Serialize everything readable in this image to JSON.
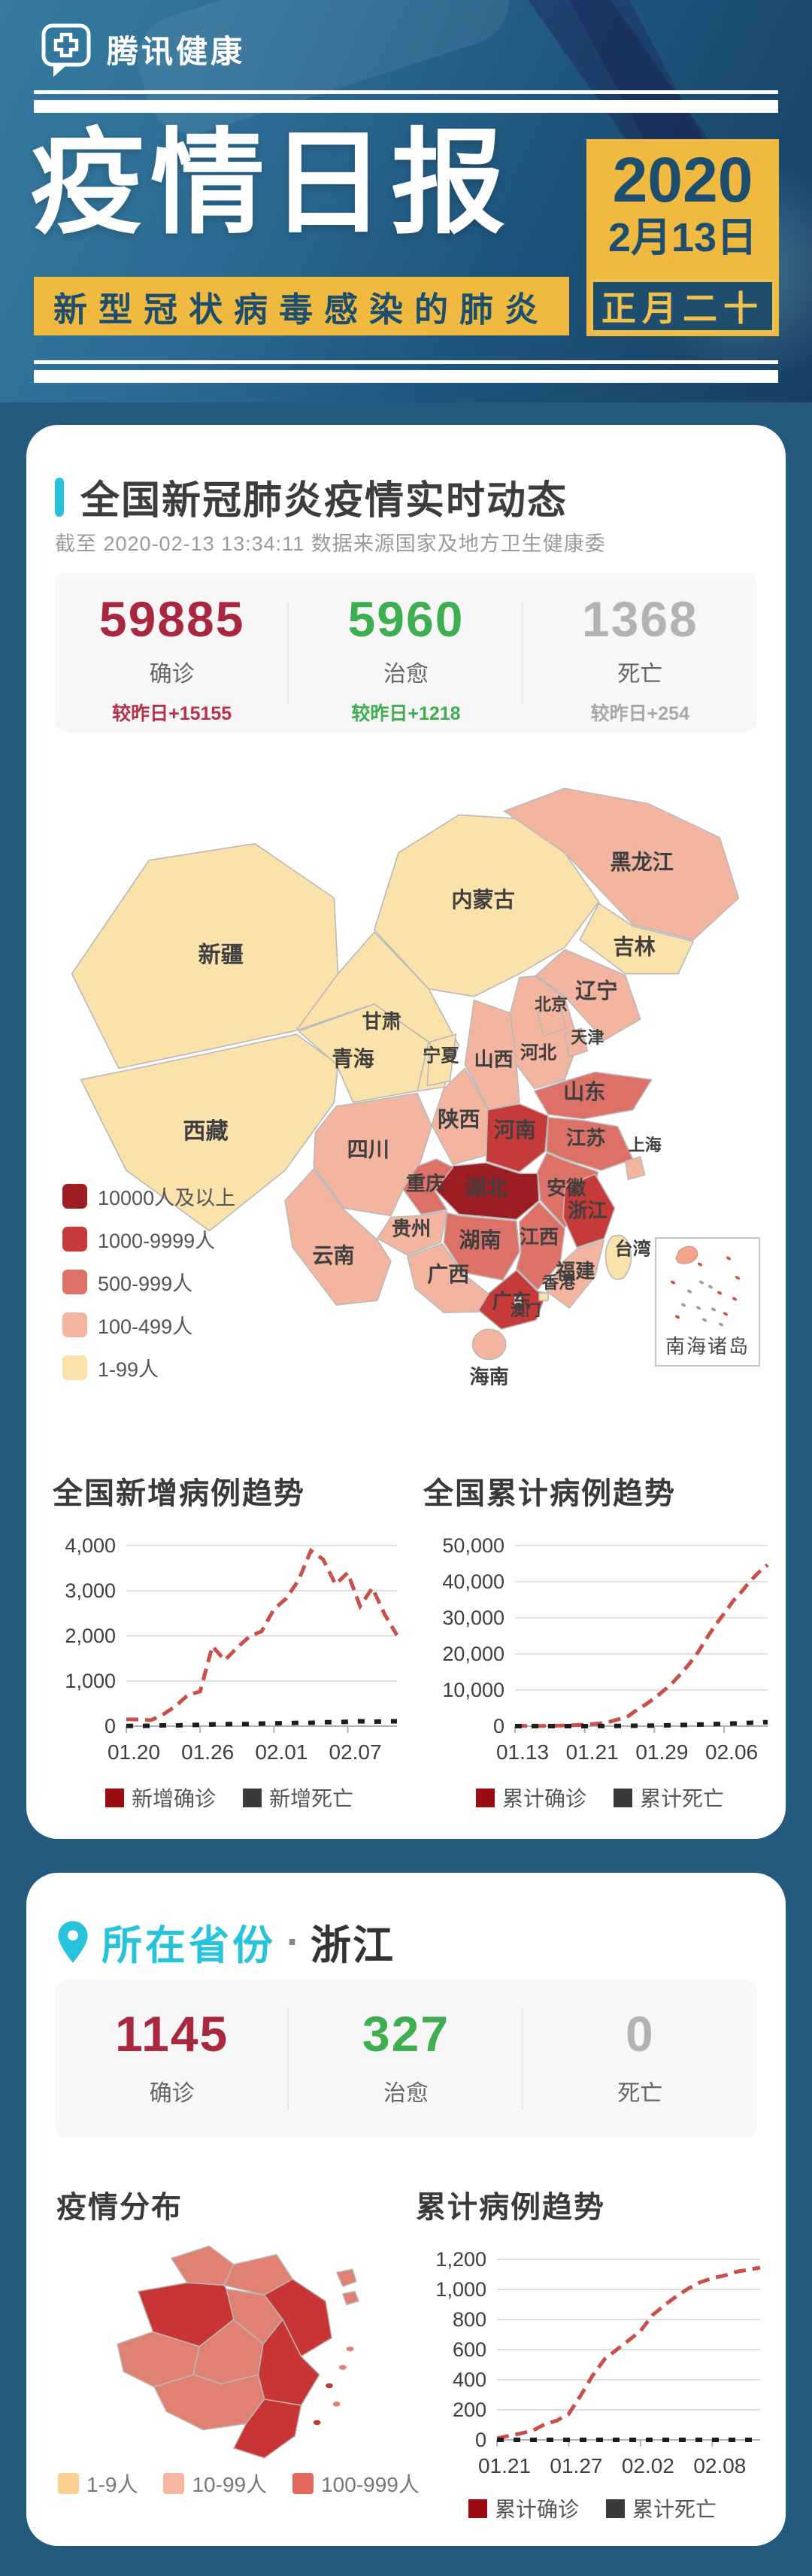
{
  "header": {
    "brand": "腾讯健康",
    "title": "疫情日报",
    "date_year": "2020",
    "date_md": "2月13日",
    "lunar": "正月二十",
    "subtitle": "新型冠状病毒感染的肺炎",
    "colors": {
      "yellow": "#efba3f",
      "navy": "#1d4e6e",
      "page_bg": "#245a7e"
    }
  },
  "national": {
    "section_title": "全国新冠肺炎疫情实时动态",
    "source_note": "截至 2020-02-13 13:34:11 数据来源国家及地方卫生健康委",
    "stats": [
      {
        "value": "59885",
        "label": "确诊",
        "delta": "较昨日+15155",
        "color": "#a8293f",
        "delta_color": "#b8304a"
      },
      {
        "value": "5960",
        "label": "治愈",
        "delta": "较昨日+1218",
        "color": "#3fae50",
        "delta_color": "#3fae50"
      },
      {
        "value": "1368",
        "label": "死亡",
        "delta": "较昨日+254",
        "color": "#b3b3b3",
        "delta_color": "#a9a9a9"
      }
    ],
    "map": {
      "legend": [
        {
          "label": "10000人及以上",
          "color": "#9c1d22"
        },
        {
          "label": "1000-9999人",
          "color": "#c73a3a"
        },
        {
          "label": "500-999人",
          "color": "#dd7168"
        },
        {
          "label": "100-499人",
          "color": "#f4b5a0"
        },
        {
          "label": "1-99人",
          "color": "#fbe2ab"
        }
      ],
      "inset_label": "南海诸岛",
      "provinces": [
        {
          "name": "新疆",
          "level": 1
        },
        {
          "name": "西藏",
          "level": 1
        },
        {
          "name": "青海",
          "level": 1
        },
        {
          "name": "甘肃",
          "level": 1
        },
        {
          "name": "内蒙古",
          "level": 1
        },
        {
          "name": "宁夏",
          "level": 1
        },
        {
          "name": "黑龙江",
          "level": 2
        },
        {
          "name": "吉林",
          "level": 1
        },
        {
          "name": "辽宁",
          "level": 2
        },
        {
          "name": "河北",
          "level": 2
        },
        {
          "name": "山西",
          "level": 2
        },
        {
          "name": "陕西",
          "level": 2
        },
        {
          "name": "山东",
          "level": 3
        },
        {
          "name": "河南",
          "level": 4
        },
        {
          "name": "江苏",
          "level": 3
        },
        {
          "name": "安徽",
          "level": 3
        },
        {
          "name": "湖北",
          "level": 5
        },
        {
          "name": "重庆",
          "level": 3
        },
        {
          "name": "四川",
          "level": 2
        },
        {
          "name": "贵州",
          "level": 2
        },
        {
          "name": "云南",
          "level": 2
        },
        {
          "name": "湖南",
          "level": 3
        },
        {
          "name": "江西",
          "level": 3
        },
        {
          "name": "浙江",
          "level": 4
        },
        {
          "name": "福建",
          "level": 2
        },
        {
          "name": "广西",
          "level": 2
        },
        {
          "name": "广东",
          "level": 4
        },
        {
          "name": "海南",
          "level": 2
        },
        {
          "name": "台湾",
          "level": 1
        },
        {
          "name": "北京",
          "level": 2
        },
        {
          "name": "天津",
          "level": 2
        },
        {
          "name": "上海",
          "level": 2
        },
        {
          "name": "香港",
          "level": 1
        },
        {
          "name": "澳门",
          "level": 1
        }
      ]
    }
  },
  "chart_data": [
    {
      "type": "line",
      "title": "全国新增病例趋势",
      "x": [
        "01.20",
        "01.21",
        "01.22",
        "01.23",
        "01.24",
        "01.25",
        "01.26",
        "01.27",
        "01.28",
        "01.29",
        "01.30",
        "01.31",
        "02.01",
        "02.02",
        "02.03",
        "02.04",
        "02.05",
        "02.06",
        "02.07",
        "02.08",
        "02.09",
        "02.10",
        "02.11"
      ],
      "xticks": [
        {
          "i": 0,
          "label": "01.20"
        },
        {
          "i": 6,
          "label": "01.26"
        },
        {
          "i": 12,
          "label": "02.01"
        },
        {
          "i": 18,
          "label": "02.07"
        }
      ],
      "yticks": [
        {
          "v": 0,
          "label": "0"
        },
        {
          "v": 1000,
          "label": "1,000"
        },
        {
          "v": 2000,
          "label": "2,000"
        },
        {
          "v": 3000,
          "label": "3,000"
        },
        {
          "v": 4000,
          "label": "4,000"
        }
      ],
      "ylim": [
        0,
        4000
      ],
      "grid": true,
      "legend_position": "bottom",
      "series": [
        {
          "name": "新增确诊",
          "role": "confirmed",
          "color": "#c9504a",
          "legend_color": "#9c0b10",
          "values": [
            150,
            149,
            131,
            259,
            444,
            688,
            769,
            1771,
            1459,
            1737,
            1982,
            2102,
            2590,
            2829,
            3235,
            3887,
            3694,
            3143,
            3399,
            2656,
            3062,
            2478,
            2015
          ]
        },
        {
          "name": "新增死亡",
          "role": "death",
          "color": "#1d1d1d",
          "legend_color": "#3a3a3a",
          "values": [
            3,
            4,
            8,
            16,
            15,
            24,
            26,
            38,
            43,
            46,
            45,
            57,
            64,
            65,
            73,
            73,
            86,
            89,
            97,
            108,
            97,
            103,
            108
          ]
        }
      ]
    },
    {
      "type": "line",
      "title": "全国累计病例趋势",
      "x": [
        "01.13",
        "01.14",
        "01.15",
        "01.16",
        "01.17",
        "01.18",
        "01.19",
        "01.20",
        "01.21",
        "01.22",
        "01.23",
        "01.24",
        "01.25",
        "01.26",
        "01.27",
        "01.28",
        "01.29",
        "01.30",
        "01.31",
        "02.01",
        "02.02",
        "02.03",
        "02.04",
        "02.05",
        "02.06",
        "02.07",
        "02.08",
        "02.09",
        "02.10",
        "02.11"
      ],
      "xticks": [
        {
          "i": 0,
          "label": "01.13"
        },
        {
          "i": 8,
          "label": "01.21"
        },
        {
          "i": 16,
          "label": "01.29"
        },
        {
          "i": 24,
          "label": "02.06"
        }
      ],
      "yticks": [
        {
          "v": 0,
          "label": "0"
        },
        {
          "v": 10000,
          "label": "10,000"
        },
        {
          "v": 20000,
          "label": "20,000"
        },
        {
          "v": 30000,
          "label": "30,000"
        },
        {
          "v": 40000,
          "label": "40,000"
        },
        {
          "v": 50000,
          "label": "50,000"
        }
      ],
      "ylim": [
        0,
        50000
      ],
      "grid": true,
      "legend_position": "bottom",
      "series": [
        {
          "name": "累计确诊",
          "role": "confirmed",
          "color": "#c9504a",
          "legend_color": "#9c0b10",
          "values": [
            41,
            41,
            41,
            45,
            62,
            121,
            198,
            291,
            440,
            571,
            830,
            1287,
            1975,
            2744,
            4515,
            5974,
            7711,
            9692,
            11791,
            14380,
            17205,
            20438,
            24324,
            28018,
            31161,
            34546,
            37198,
            40171,
            42638,
            44653
          ]
        },
        {
          "name": "累计死亡",
          "role": "death",
          "color": "#1d1d1d",
          "legend_color": "#3a3a3a",
          "values": [
            1,
            1,
            2,
            2,
            2,
            3,
            4,
            6,
            9,
            17,
            25,
            41,
            56,
            80,
            106,
            132,
            170,
            213,
            259,
            304,
            361,
            425,
            490,
            563,
            636,
            722,
            811,
            908,
            1016,
            1113
          ]
        }
      ]
    },
    {
      "type": "line",
      "title": "累计病例趋势",
      "x": [
        "01.21",
        "01.22",
        "01.23",
        "01.24",
        "01.25",
        "01.26",
        "01.27",
        "01.28",
        "01.29",
        "01.30",
        "01.31",
        "02.01",
        "02.02",
        "02.03",
        "02.04",
        "02.05",
        "02.06",
        "02.07",
        "02.08",
        "02.09",
        "02.10",
        "02.11",
        "02.12"
      ],
      "xticks": [
        {
          "i": 0,
          "label": "01.21"
        },
        {
          "i": 6,
          "label": "01.27"
        },
        {
          "i": 12,
          "label": "02.02"
        },
        {
          "i": 18,
          "label": "02.08"
        }
      ],
      "yticks": [
        {
          "v": 0,
          "label": "0"
        },
        {
          "v": 200,
          "label": "200"
        },
        {
          "v": 400,
          "label": "400"
        },
        {
          "v": 600,
          "label": "600"
        },
        {
          "v": 800,
          "label": "800"
        },
        {
          "v": 1000,
          "label": "1,000"
        },
        {
          "v": 1200,
          "label": "1,200"
        }
      ],
      "ylim": [
        0,
        1200
      ],
      "grid": true,
      "legend_position": "bottom",
      "series": [
        {
          "name": "累计确诊",
          "role": "confirmed",
          "color": "#c9504a",
          "legend_color": "#9c0b10",
          "values": [
            10,
            27,
            43,
            62,
            104,
            128,
            173,
            296,
            428,
            537,
            599,
            661,
            724,
            829,
            895,
            954,
            1006,
            1048,
            1075,
            1092,
            1117,
            1131,
            1145
          ]
        },
        {
          "name": "累计死亡",
          "role": "death",
          "color": "#1d1d1d",
          "legend_color": "#3a3a3a",
          "values": [
            0,
            0,
            0,
            0,
            0,
            0,
            0,
            0,
            0,
            0,
            0,
            0,
            0,
            0,
            0,
            0,
            0,
            0,
            0,
            0,
            0,
            0,
            0
          ]
        }
      ]
    }
  ],
  "province": {
    "section_title": "所在省份",
    "separator": "·",
    "province_name": "浙江",
    "stats": [
      {
        "value": "1145",
        "label": "确诊",
        "color": "#a8293f"
      },
      {
        "value": "327",
        "label": "治愈",
        "color": "#3fae50"
      },
      {
        "value": "0",
        "label": "死亡",
        "color": "#b3b3b3"
      }
    ],
    "dist_title": "疫情分布",
    "trend_title": "累计病例趋势",
    "zj_legend": [
      {
        "label": "1-9人",
        "color": "#fad191"
      },
      {
        "label": "10-99人",
        "color": "#f5b5a0"
      },
      {
        "label": "100-999人",
        "color": "#e4685c"
      }
    ],
    "map_colors": {
      "c1": "#fad191",
      "c2": "#e08173",
      "c3": "#c93434"
    },
    "region_levels": [
      2,
      2,
      3,
      2,
      3,
      2,
      2,
      2,
      3,
      2,
      3
    ]
  }
}
